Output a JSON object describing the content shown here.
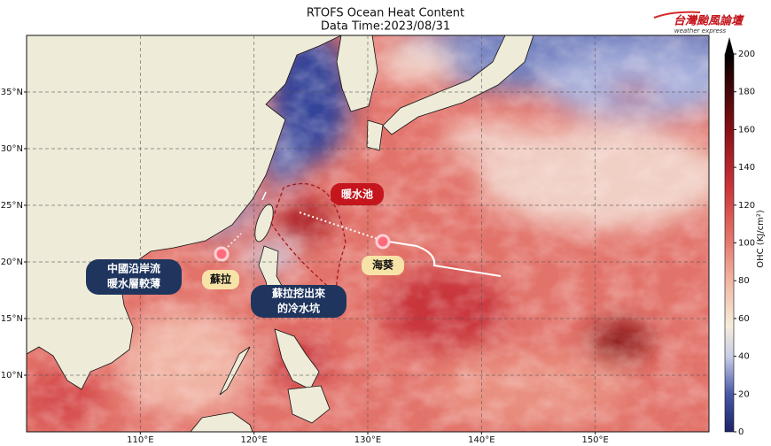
{
  "header": {
    "title": "RTOFS Ocean Heat Content",
    "subtitle": "Data Time:2023/08/31",
    "logo": "台灣颱風論壇",
    "logo_subtitle": "weather express"
  },
  "map": {
    "xlim": [
      100,
      160
    ],
    "ylim": [
      5,
      40
    ],
    "xticks": [
      {
        "value": 110,
        "label": "110°E"
      },
      {
        "value": 120,
        "label": "120°E"
      },
      {
        "value": 130,
        "label": "130°E"
      },
      {
        "value": 140,
        "label": "140°E"
      },
      {
        "value": 150,
        "label": "150°E"
      }
    ],
    "yticks": [
      {
        "value": 10,
        "label": "10°N"
      },
      {
        "value": 15,
        "label": "15°N"
      },
      {
        "value": 20,
        "label": "20°N"
      },
      {
        "value": 25,
        "label": "25°N"
      },
      {
        "value": 30,
        "label": "30°N"
      },
      {
        "value": 35,
        "label": "35°N"
      }
    ]
  },
  "colorbar": {
    "label": "OHC (KJ/cm²)",
    "lim": [
      0,
      200
    ],
    "ticks": [
      0,
      20,
      40,
      60,
      80,
      100,
      120,
      140,
      160,
      180,
      200
    ]
  },
  "annotations": {
    "warm_pool": "暖水池",
    "coastal_current": [
      "中國沿岸流",
      "暖水層較薄"
    ],
    "saola": "蘇拉",
    "cold_pool": [
      "蘇拉挖出來",
      "的冷水坑"
    ],
    "haikui": "海葵"
  }
}
